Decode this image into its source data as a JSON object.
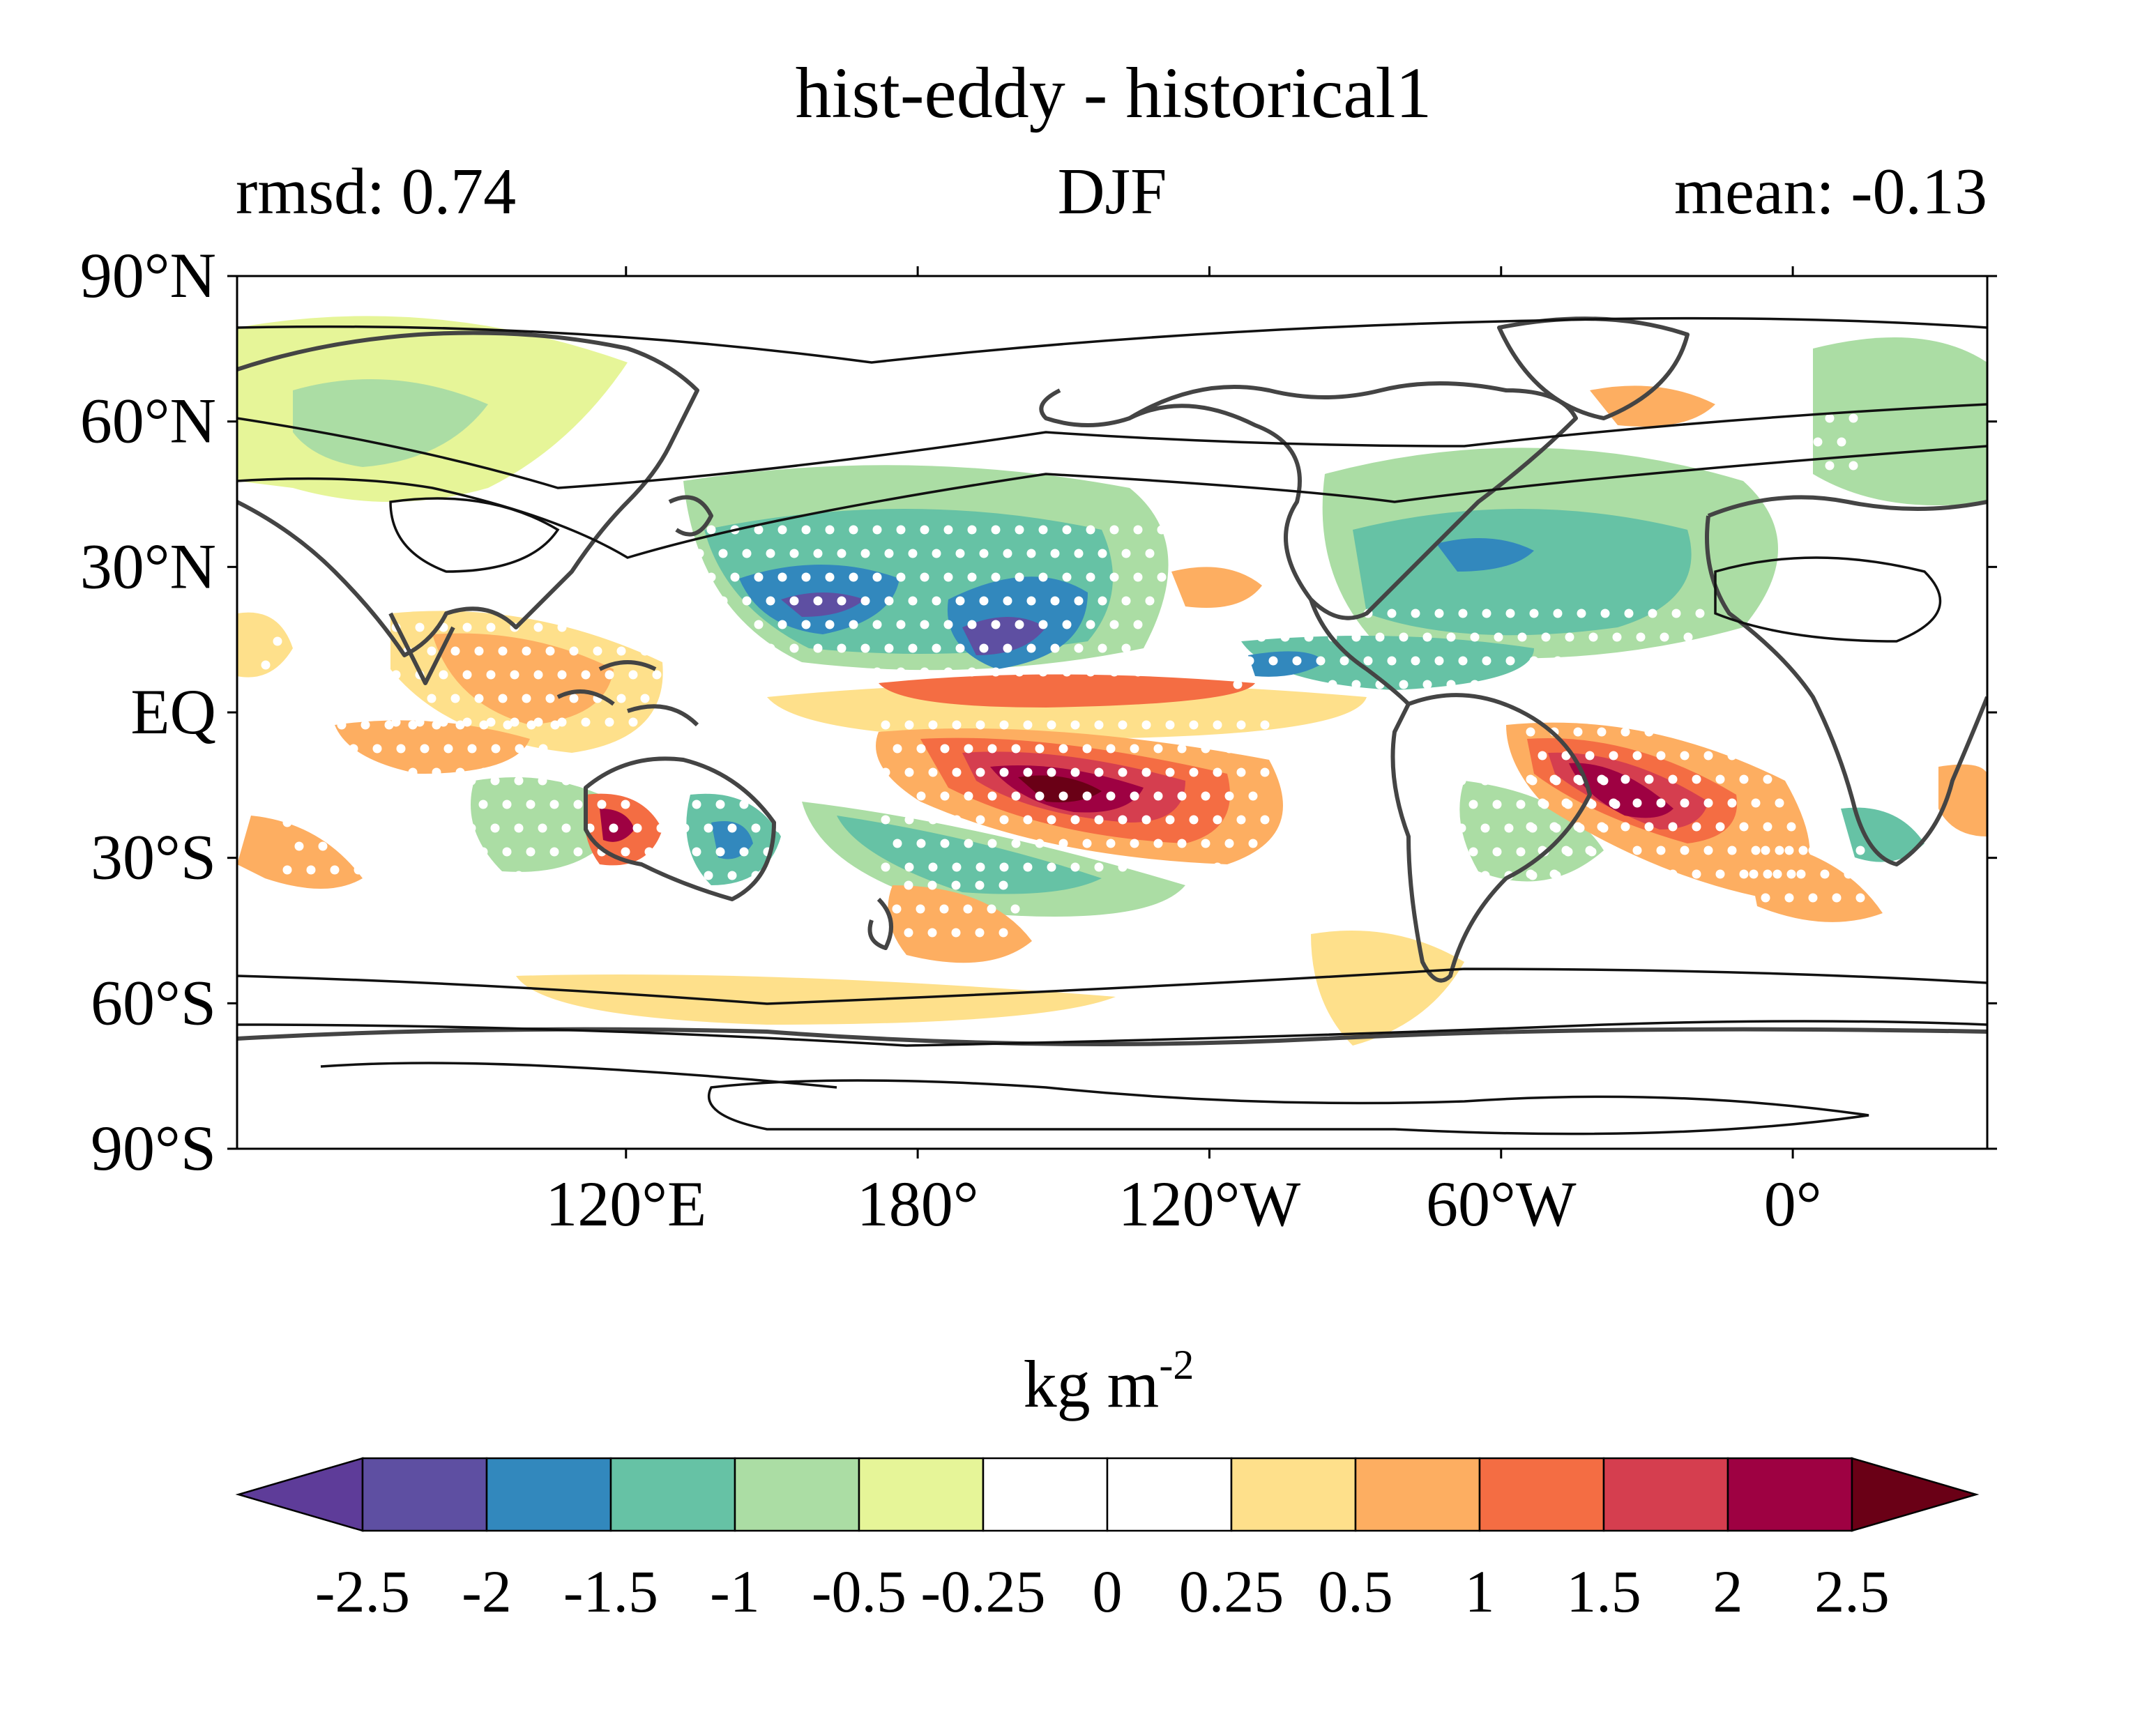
{
  "header": {
    "title": "hist-eddy - historical1",
    "left_label": "rmsd: 0.74",
    "center_label": "DJF",
    "right_label": "mean: -0.13"
  },
  "map": {
    "projection": "equirectangular",
    "lon_range": [
      40,
      400
    ],
    "lat_range": [
      -90,
      90
    ],
    "lat_ticks": [
      {
        "value": 90,
        "label": "90°N"
      },
      {
        "value": 60,
        "label": "60°N"
      },
      {
        "value": 30,
        "label": "30°N"
      },
      {
        "value": 0,
        "label": "EQ"
      },
      {
        "value": -30,
        "label": "30°S"
      },
      {
        "value": -60,
        "label": "60°S"
      },
      {
        "value": -90,
        "label": "90°S"
      }
    ],
    "lon_ticks": [
      {
        "value": 120,
        "label": "120°E"
      },
      {
        "value": 180,
        "label": "180°"
      },
      {
        "value": 240,
        "label": "120°W"
      },
      {
        "value": 300,
        "label": "60°W"
      },
      {
        "value": 360,
        "label": "0°"
      }
    ],
    "stippling": "white dots",
    "contour_overlay": "black lines"
  },
  "colorbar": {
    "unit_base": "kg m",
    "unit_exp": "-2",
    "orientation": "horizontal",
    "extend": "both",
    "tick_labels": [
      "-2.5",
      "-2",
      "-1.5",
      "-1",
      "-0.5",
      "-0.25",
      "0",
      "0.25",
      "0.5",
      "1",
      "1.5",
      "2",
      "2.5"
    ],
    "colors": [
      "#5e3c99",
      "#5e4fa2",
      "#3288bd",
      "#66c2a5",
      "#abdda4",
      "#e6f598",
      "#ffffff",
      "#ffffff",
      "#fee08b",
      "#fdae61",
      "#f46d43",
      "#d53e4f",
      "#9e0142",
      "#6a0016"
    ]
  }
}
